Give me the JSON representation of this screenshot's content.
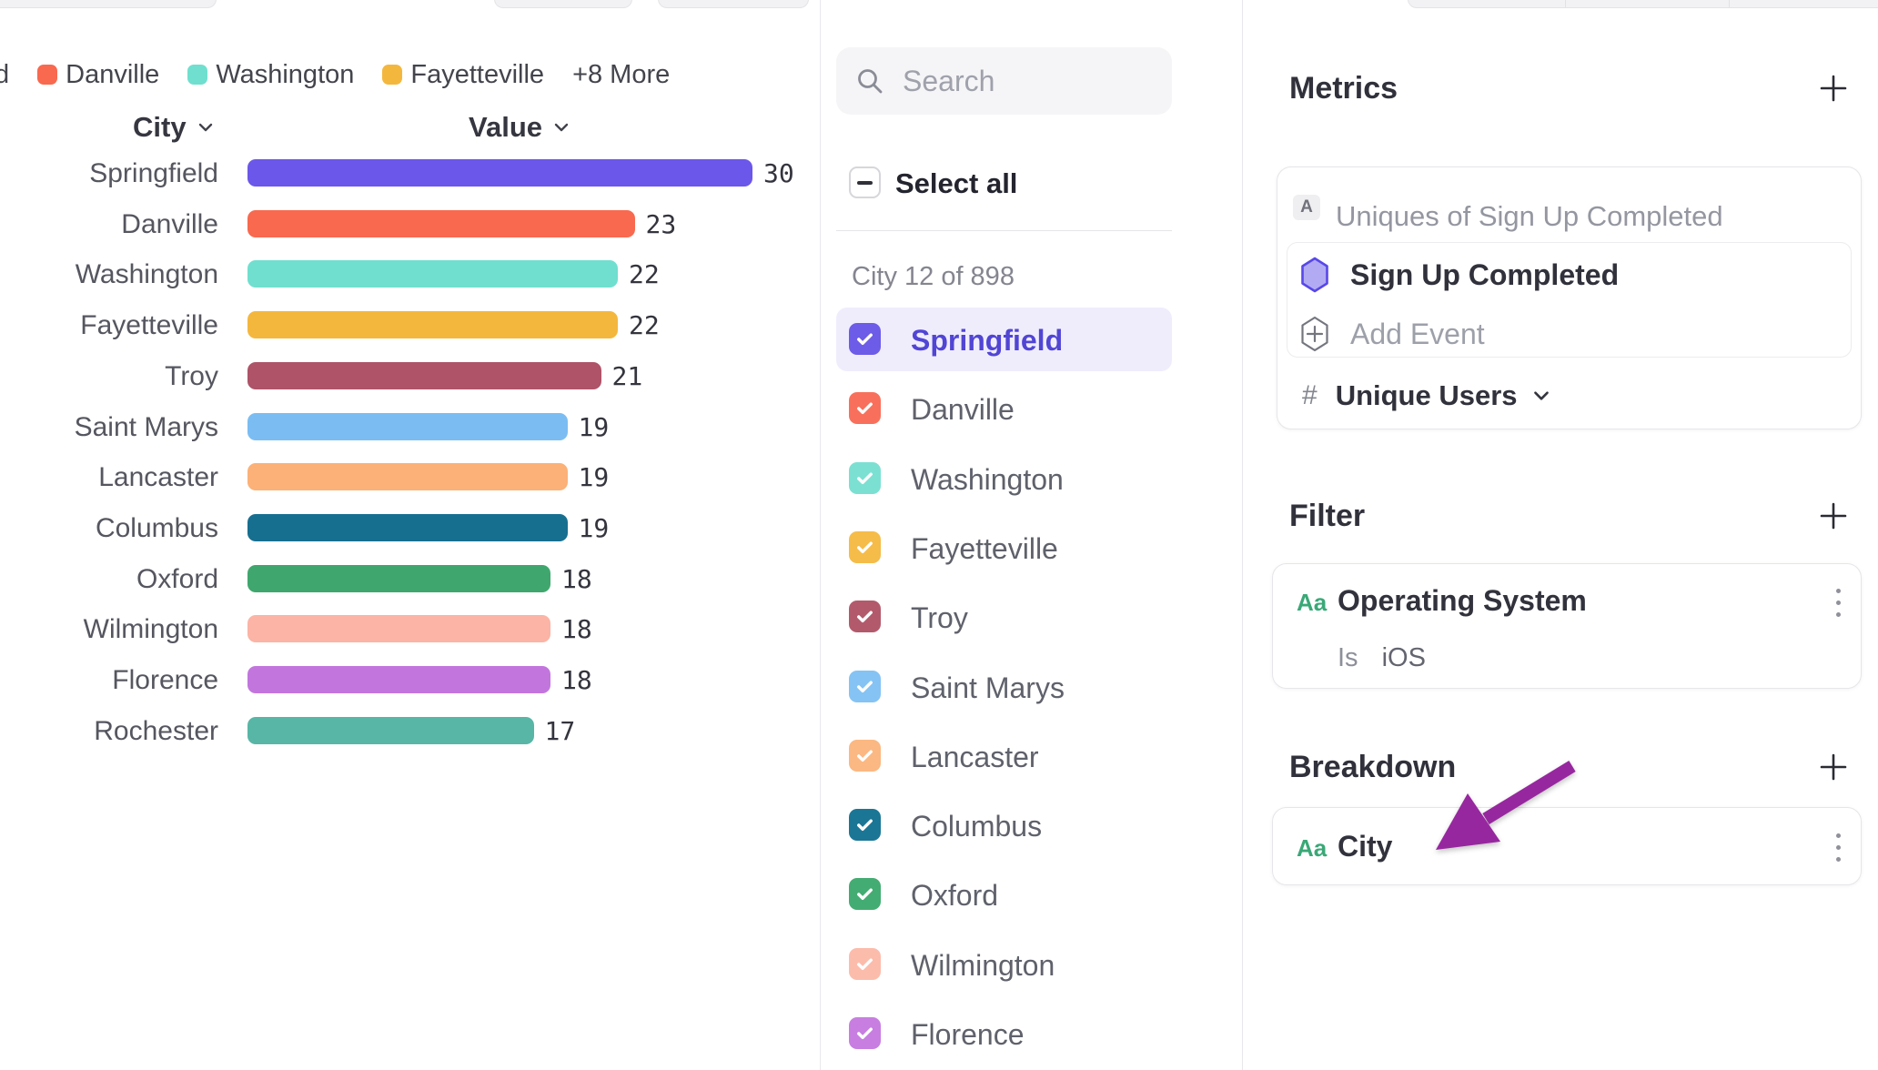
{
  "legend": {
    "clipped_label": "d",
    "items": [
      {
        "label": "Danville",
        "color": "#F8694F"
      },
      {
        "label": "Washington",
        "color": "#70DFCF"
      },
      {
        "label": "Fayetteville",
        "color": "#F4B73E"
      }
    ],
    "more": "+8 More"
  },
  "chart_data": {
    "type": "bar",
    "orientation": "horizontal",
    "columns": {
      "category": "City",
      "value": "Value"
    },
    "categories": [
      "Springfield",
      "Danville",
      "Washington",
      "Fayetteville",
      "Troy",
      "Saint Marys",
      "Lancaster",
      "Columbus",
      "Oxford",
      "Wilmington",
      "Florence",
      "Rochester"
    ],
    "values": [
      30,
      23,
      22,
      22,
      21,
      19,
      19,
      19,
      18,
      18,
      18,
      17
    ],
    "colors": [
      "#6B57E9",
      "#F8694F",
      "#70DFCF",
      "#F4B73E",
      "#AE5368",
      "#7BBDF2",
      "#FBB177",
      "#176F90",
      "#3FA76D",
      "#FBB4A5",
      "#C276DD",
      "#58B6A6"
    ],
    "xlim": [
      0,
      30
    ],
    "grid": false,
    "legend_position": "top"
  },
  "selector": {
    "search_placeholder": "Search",
    "select_all": "Select all",
    "select_all_state": "indeterminate",
    "count": "City 12 of 898",
    "items": [
      {
        "label": "Springfield",
        "color": "#6C5CE7",
        "selected": true,
        "highlighted": true
      },
      {
        "label": "Danville",
        "color": "#F8705B",
        "selected": true,
        "highlighted": false
      },
      {
        "label": "Washington",
        "color": "#7BE0D2",
        "selected": true,
        "highlighted": false
      },
      {
        "label": "Fayetteville",
        "color": "#F5BC49",
        "selected": true,
        "highlighted": false
      },
      {
        "label": "Troy",
        "color": "#B25A6C",
        "selected": true,
        "highlighted": false
      },
      {
        "label": "Saint Marys",
        "color": "#85C3F4",
        "selected": true,
        "highlighted": false
      },
      {
        "label": "Lancaster",
        "color": "#FBB882",
        "selected": true,
        "highlighted": false
      },
      {
        "label": "Columbus",
        "color": "#1B7695",
        "selected": true,
        "highlighted": false
      },
      {
        "label": "Oxford",
        "color": "#43AC72",
        "selected": true,
        "highlighted": false
      },
      {
        "label": "Wilmington",
        "color": "#FCBCAC",
        "selected": true,
        "highlighted": false
      },
      {
        "label": "Florence",
        "color": "#C77EE0",
        "selected": true,
        "highlighted": false
      }
    ]
  },
  "inspector": {
    "metrics": {
      "title": "Metrics",
      "formula_badge": "A",
      "formula_text": "Uniques of Sign Up Completed",
      "event_name": "Sign Up Completed",
      "add_event_label": "Add Event",
      "measure_prefix": "#",
      "measure": "Unique Users"
    },
    "filter": {
      "title": "Filter",
      "type_badge": "Aa",
      "property": "Operating System",
      "operator": "Is",
      "value": "iOS"
    },
    "breakdown": {
      "title": "Breakdown",
      "type_badge": "Aa",
      "property": "City"
    }
  },
  "icons": {
    "search": "magnifier",
    "column_sort": "chevron-down",
    "measure_dropdown": "chevron-down",
    "section_add": "plus",
    "card_menu": "kebab-vertical",
    "event": "hexagon",
    "add_event": "hexagon-plus",
    "checkbox": "check",
    "select_all": "minus",
    "annotation": "purple-arrow"
  },
  "annotation": {
    "arrow_color": "#97279F"
  }
}
